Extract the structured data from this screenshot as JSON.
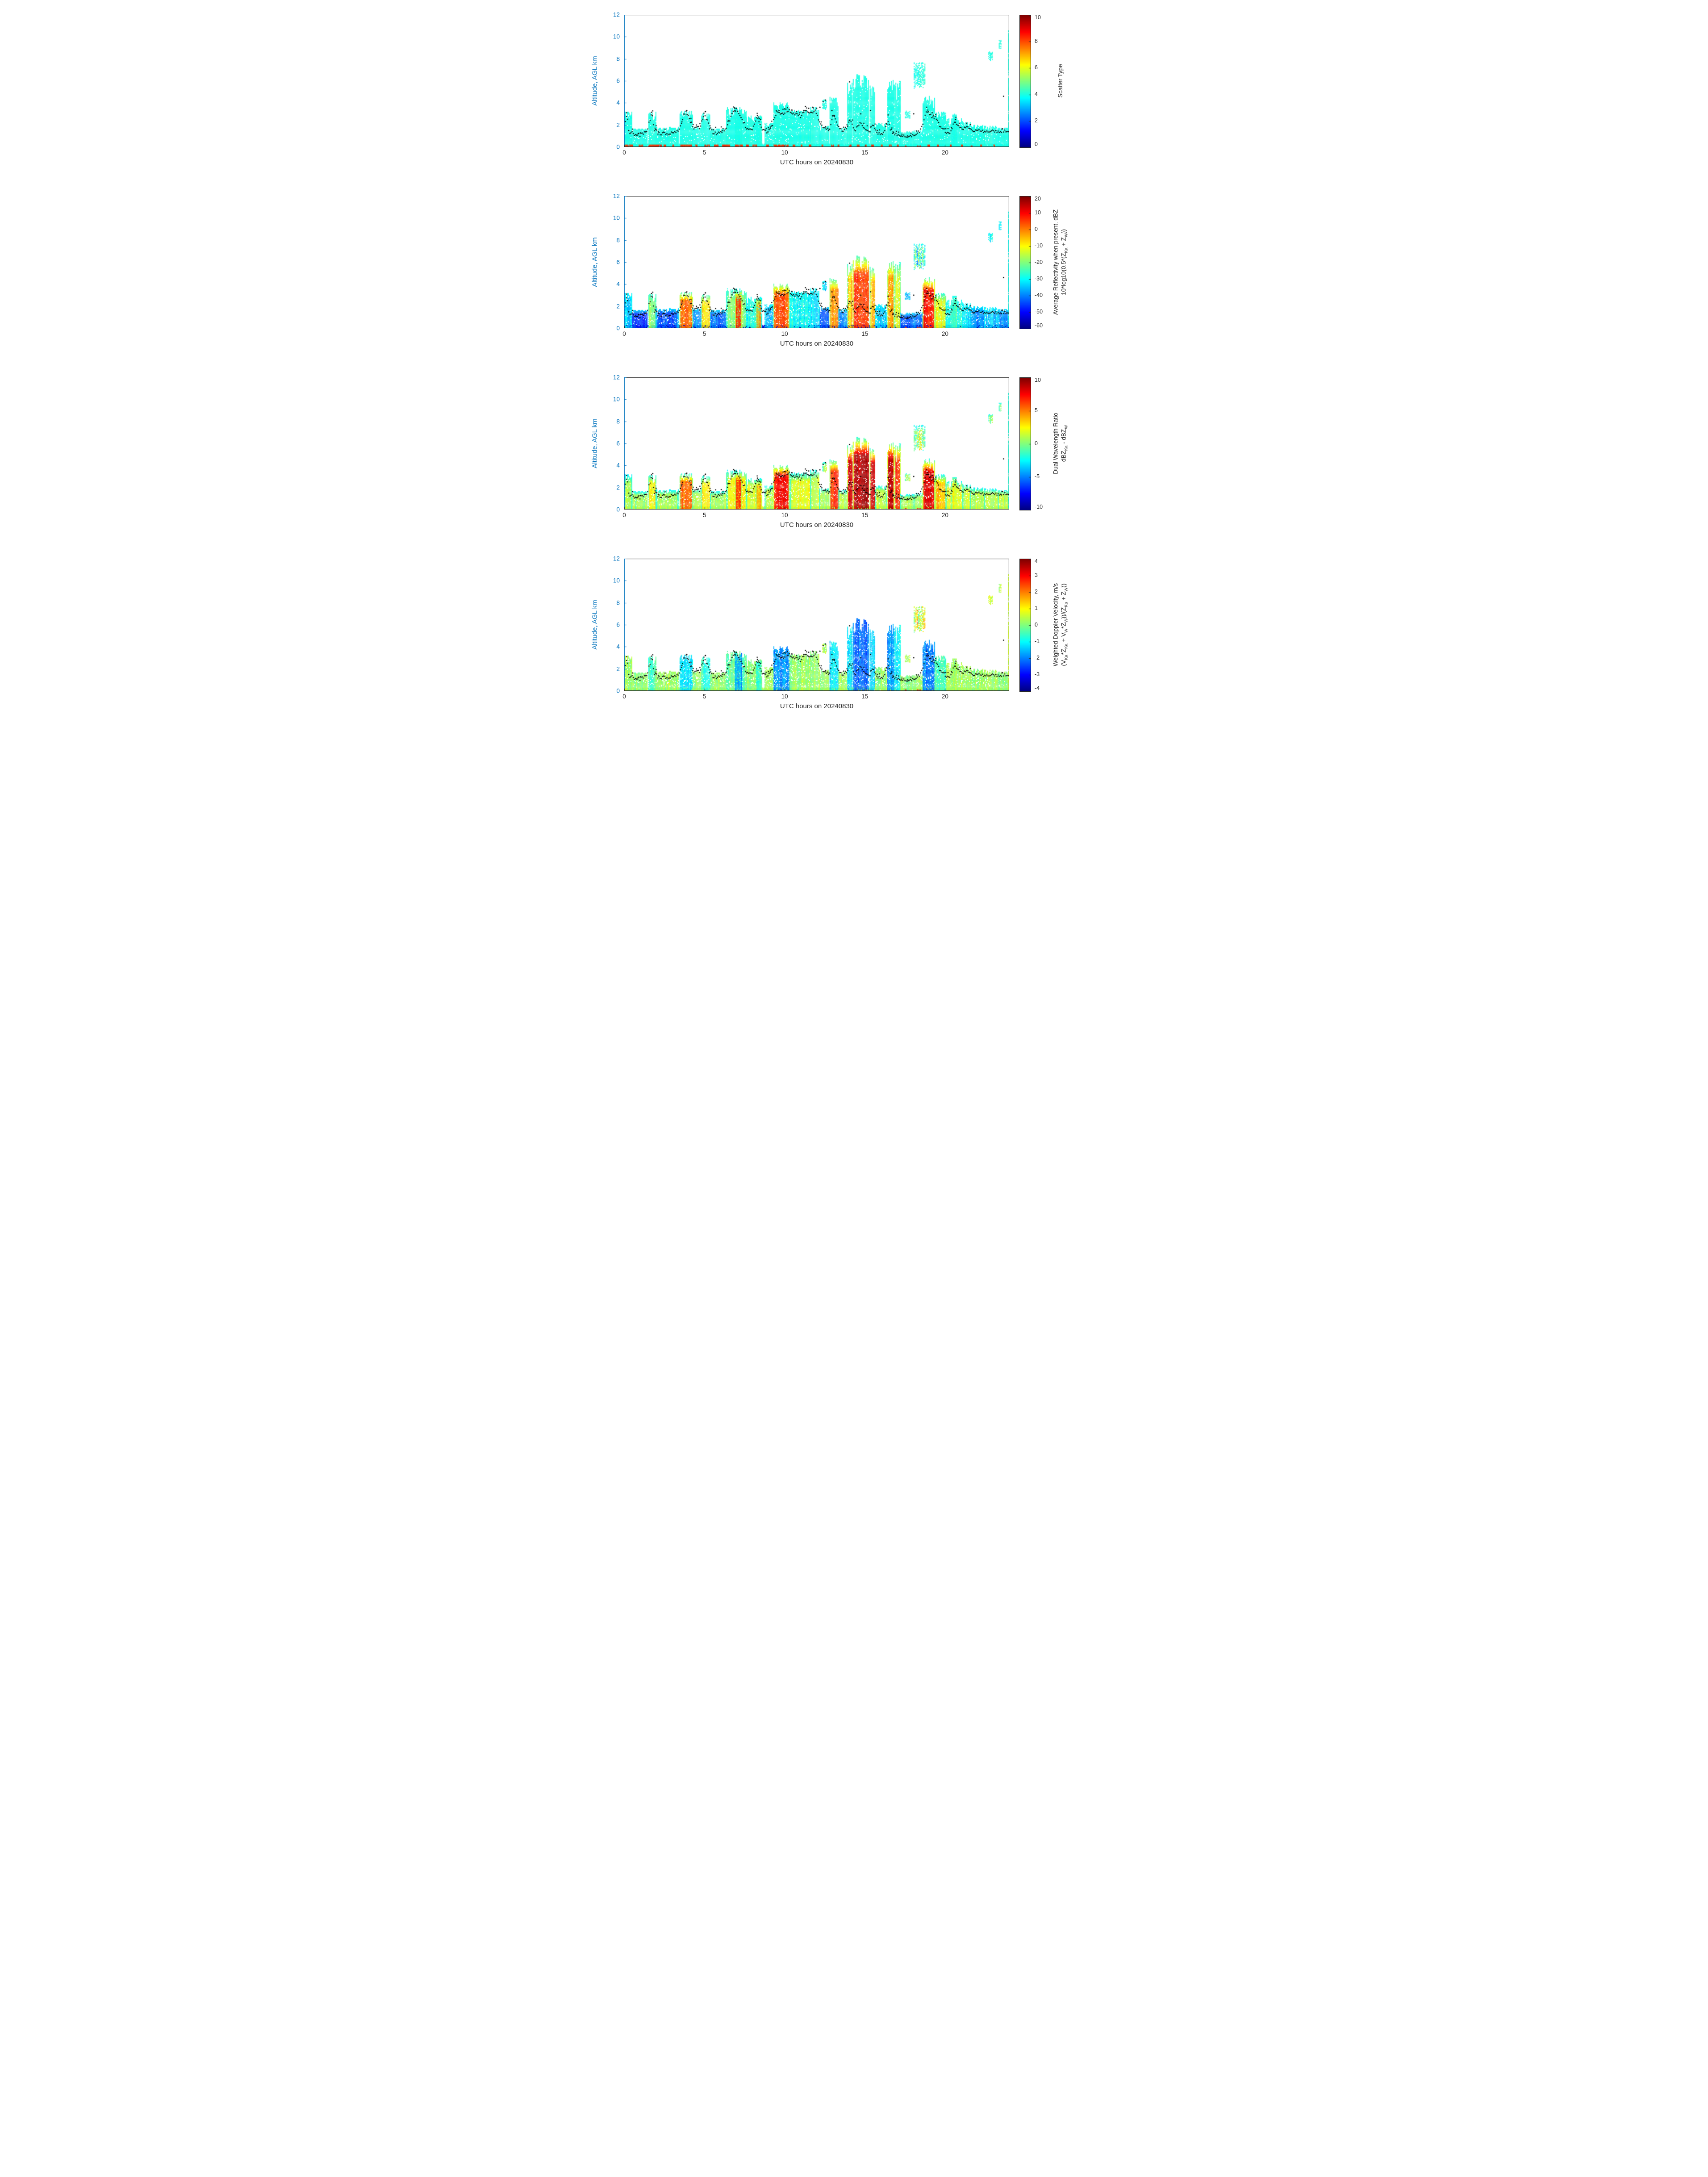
{
  "figure": {
    "background": "#ffffff",
    "y_axis_color": "#0072BD",
    "x_axis_color": "#262626",
    "dot_color": "#000000",
    "flag_color": "#ed3419",
    "colormap": "jet"
  },
  "chart_data": {
    "type": "heatmap",
    "x": {
      "label": "UTC hours on 20240830",
      "range": [
        0,
        24
      ],
      "ticks": [
        0,
        5,
        10,
        15,
        20
      ]
    },
    "y": {
      "label": "Altitude, AGL km",
      "range": [
        0,
        12
      ],
      "ticks": [
        0,
        2,
        4,
        6,
        8,
        10,
        12
      ]
    },
    "panels": [
      {
        "name": "scatter-type",
        "colorbar": {
          "min": 0,
          "max": 10,
          "ticks": [
            0,
            2,
            4,
            6,
            8,
            10
          ],
          "label_lines": [
            [
              {
                "t": "Scatter Type"
              }
            ]
          ]
        }
      },
      {
        "name": "average-reflectivity",
        "colorbar": {
          "min": -60,
          "max": 20,
          "ticks": [
            20,
            10,
            0,
            -10,
            -20,
            -30,
            -40,
            -50,
            -60
          ],
          "label_lines": [
            [
              {
                "t": "Average Reflectivity when present, dBZ"
              }
            ],
            [
              {
                "t": "10*log10(0.5*(Z"
              },
              {
                "s": "Ka"
              },
              {
                "t": " + Z"
              },
              {
                "s": "W"
              },
              {
                "t": "))"
              }
            ]
          ]
        }
      },
      {
        "name": "dual-wavelength-ratio",
        "colorbar": {
          "min": -10,
          "max": 10,
          "ticks": [
            10,
            5,
            0,
            -5,
            -10
          ],
          "label_lines": [
            [
              {
                "t": "Dual Wavelength Ratio"
              }
            ],
            [
              {
                "t": "dBZ"
              },
              {
                "s": "Ka"
              },
              {
                "t": " - dBZ"
              },
              {
                "s": "W"
              }
            ]
          ]
        }
      },
      {
        "name": "weighted-doppler-velocity",
        "colorbar": {
          "min": -4,
          "max": 4,
          "ticks": [
            4,
            3,
            2,
            1,
            0,
            -1,
            -2,
            -3,
            -4
          ],
          "label_lines": [
            [
              {
                "t": "Weighted Doppler Velocity, m/s"
              }
            ],
            [
              {
                "t": "(V"
              },
              {
                "s": "Ka"
              },
              {
                "t": "*Z"
              },
              {
                "s": "Ka"
              },
              {
                "t": " + V"
              },
              {
                "s": "W"
              },
              {
                "t": "*Z"
              },
              {
                "s": "W"
              },
              {
                "t": "))/(Z"
              },
              {
                "s": "Ka"
              },
              {
                "t": " + Z"
              },
              {
                "s": "W"
              },
              {
                "t": "))"
              }
            ]
          ]
        }
      }
    ],
    "cloud_features_format": [
      "t_start_h",
      "t_end_h",
      "base_km",
      "top_km",
      "scatter_type",
      "reflectivity_dBZ",
      "dwr_dB",
      "doppler_ms",
      "optional_noise_mult"
    ],
    "cloud_features": [
      [
        0.0,
        0.45,
        0,
        3.2,
        4,
        -34,
        1.0,
        0.2
      ],
      [
        0.45,
        1.45,
        0,
        1.7,
        4,
        -46,
        0.6,
        0.1
      ],
      [
        1.5,
        1.95,
        0,
        3.2,
        4,
        -18,
        2.5,
        -0.4
      ],
      [
        1.95,
        3.35,
        0,
        1.8,
        4,
        -44,
        0.8,
        0.2
      ],
      [
        3.45,
        4.25,
        0,
        3.3,
        4,
        2,
        5.5,
        -1.2
      ],
      [
        4.25,
        4.8,
        0,
        1.9,
        4,
        -38,
        1.2,
        0.2
      ],
      [
        4.8,
        5.35,
        0,
        3.1,
        4,
        -8,
        3.0,
        -0.6
      ],
      [
        5.35,
        6.35,
        0,
        1.7,
        4,
        -42,
        0.8,
        0.2
      ],
      [
        6.35,
        7.6,
        0,
        3.6,
        4,
        -20,
        2.5,
        -0.3
      ],
      [
        6.9,
        7.3,
        0,
        3.5,
        4,
        6,
        6.5,
        -1.8
      ],
      [
        7.6,
        8.6,
        0,
        2.9,
        4,
        -28,
        1.8,
        0.1
      ],
      [
        8.2,
        8.5,
        0,
        2.8,
        4,
        -4,
        4.0,
        -0.8
      ],
      [
        8.75,
        9.3,
        0,
        2.2,
        4,
        -34,
        1.0,
        0.2
      ],
      [
        9.3,
        10.25,
        0,
        4.1,
        4,
        3,
        7.5,
        -1.8
      ],
      [
        10.3,
        11.6,
        0,
        3.4,
        4,
        -30,
        2.0,
        0.2
      ],
      [
        11.6,
        12.15,
        0,
        3.7,
        4,
        -32,
        1.5,
        0.2
      ],
      [
        12.15,
        12.75,
        0,
        2.0,
        4,
        -42,
        0.8,
        0.1
      ],
      [
        12.35,
        12.6,
        3.4,
        4.3,
        4,
        -34,
        0.8,
        0.3
      ],
      [
        12.8,
        13.35,
        0,
        4.6,
        4,
        -2,
        6.5,
        -1.2
      ],
      [
        13.35,
        13.9,
        0,
        1.8,
        4,
        -38,
        1.0,
        0.2
      ],
      [
        13.9,
        14.2,
        0,
        5.9,
        4,
        -6,
        8.5,
        -1.2
      ],
      [
        14.25,
        15.25,
        0,
        6.6,
        4,
        6,
        9.0,
        -2.2
      ],
      [
        15.3,
        15.6,
        0,
        5.6,
        4,
        -6,
        8.0,
        -1.4
      ],
      [
        15.65,
        16.35,
        0,
        2.2,
        4,
        -34,
        1.4,
        0.2
      ],
      [
        16.4,
        16.8,
        0,
        6.2,
        4,
        -2,
        8.5,
        -1.8
      ],
      [
        16.85,
        17.2,
        0,
        6.0,
        4,
        -12,
        7.0,
        -1.0
      ],
      [
        17.2,
        18.05,
        0,
        1.4,
        4,
        -44,
        0.8,
        0.1
      ],
      [
        17.5,
        17.8,
        2.6,
        3.3,
        4,
        -36,
        1.0,
        0.3
      ],
      [
        18.05,
        18.75,
        5.3,
        7.7,
        4,
        -26,
        0.5,
        0.8,
        3
      ],
      [
        18.05,
        18.6,
        0,
        1.5,
        4,
        -42,
        1.0,
        0.2
      ],
      [
        18.6,
        19.35,
        0,
        4.6,
        4,
        9,
        8.0,
        -2.0
      ],
      [
        19.35,
        20.05,
        0,
        3.2,
        4,
        -12,
        3.5,
        -0.5
      ],
      [
        20.05,
        21.1,
        0,
        2.6,
        4,
        -28,
        2.0,
        0.3
      ],
      [
        20.4,
        20.7,
        0,
        3.1,
        4,
        -24,
        2.2,
        0.2
      ],
      [
        21.1,
        21.55,
        0,
        2.3,
        4,
        -32,
        1.6,
        0.2
      ],
      [
        21.55,
        22.45,
        0,
        2.0,
        4,
        -38,
        1.0,
        0.1
      ],
      [
        22.45,
        23.3,
        0,
        1.9,
        4,
        -34,
        1.2,
        0.2
      ],
      [
        23.3,
        23.95,
        0,
        1.8,
        4,
        -38,
        1.0,
        0.1
      ],
      [
        22.7,
        22.95,
        7.8,
        8.65,
        4,
        -30,
        0.4,
        0.6
      ],
      [
        23.35,
        23.5,
        8.9,
        9.7,
        4,
        -32,
        0.3,
        0.5
      ],
      [
        23.94,
        24.0,
        0,
        12.0,
        4,
        -30,
        0.5,
        0.4
      ]
    ],
    "surface_layer": {
      "t": [
        0,
        24
      ],
      "z": [
        0,
        0.3
      ],
      "values": [
        4,
        -55,
        0.8,
        0.4
      ]
    },
    "surface_scatter_orange": {
      "value": 8.3,
      "z": [
        0,
        0.22
      ],
      "intervals": [
        [
          0.05,
          0.5
        ],
        [
          0.9,
          1.15
        ],
        [
          1.5,
          2.3
        ],
        [
          2.45,
          2.6
        ],
        [
          3.0,
          3.1
        ],
        [
          3.5,
          4.2
        ],
        [
          4.4,
          4.55
        ],
        [
          5.0,
          5.3
        ],
        [
          5.6,
          5.85
        ],
        [
          6.1,
          6.6
        ],
        [
          6.9,
          7.4
        ],
        [
          7.6,
          7.75
        ],
        [
          8.0,
          8.25
        ],
        [
          8.85,
          9.0
        ],
        [
          9.3,
          10.2
        ],
        [
          10.5,
          10.65
        ],
        [
          11.0,
          11.1
        ],
        [
          11.5,
          11.65
        ],
        [
          12.3,
          12.4
        ],
        [
          12.9,
          13.05
        ],
        [
          13.3,
          13.4
        ],
        [
          14.0,
          14.15
        ],
        [
          14.5,
          14.65
        ],
        [
          15.0,
          15.1
        ],
        [
          15.4,
          15.55
        ],
        [
          16.0,
          16.1
        ],
        [
          16.5,
          16.65
        ],
        [
          17.0,
          17.1
        ],
        [
          18.9,
          19.05
        ],
        [
          19.5,
          19.6
        ],
        [
          20.3,
          20.4
        ],
        [
          21.0,
          21.1
        ],
        [
          21.6,
          21.7
        ],
        [
          22.2,
          22.3
        ],
        [
          23.0,
          23.1
        ]
      ]
    },
    "dot_track_keypoints": [
      [
        0.0,
        1.6
      ],
      [
        0.15,
        3.0
      ],
      [
        0.3,
        1.4
      ],
      [
        0.6,
        1.2
      ],
      [
        1.0,
        1.1
      ],
      [
        1.4,
        1.3
      ],
      [
        1.7,
        3.1
      ],
      [
        1.9,
        1.5
      ],
      [
        2.2,
        1.2
      ],
      [
        2.6,
        1.2
      ],
      [
        3.0,
        1.3
      ],
      [
        3.4,
        1.6
      ],
      [
        3.8,
        3.2
      ],
      [
        4.0,
        2.9
      ],
      [
        4.3,
        1.7
      ],
      [
        4.7,
        1.7
      ],
      [
        5.0,
        3.1
      ],
      [
        5.3,
        1.8
      ],
      [
        5.6,
        1.2
      ],
      [
        6.0,
        1.3
      ],
      [
        6.4,
        1.8
      ],
      [
        6.8,
        3.3
      ],
      [
        7.0,
        3.4
      ],
      [
        7.3,
        2.5
      ],
      [
        7.7,
        1.6
      ],
      [
        8.0,
        1.6
      ],
      [
        8.3,
        2.8
      ],
      [
        8.6,
        1.5
      ],
      [
        8.9,
        1.4
      ],
      [
        9.2,
        1.9
      ],
      [
        9.5,
        3.1
      ],
      [
        9.8,
        2.9
      ],
      [
        10.1,
        3.3
      ],
      [
        10.4,
        3.2
      ],
      [
        10.7,
        3.0
      ],
      [
        11.0,
        2.8
      ],
      [
        11.3,
        3.2
      ],
      [
        11.6,
        3.0
      ],
      [
        11.9,
        3.2
      ],
      [
        12.2,
        2.2
      ],
      [
        12.5,
        1.7
      ],
      [
        12.8,
        1.5
      ],
      [
        13.05,
        2.9
      ],
      [
        13.3,
        2.0
      ],
      [
        13.6,
        1.4
      ],
      [
        13.9,
        1.8
      ],
      [
        14.1,
        2.4
      ],
      [
        14.4,
        1.5
      ],
      [
        14.7,
        2.2
      ],
      [
        15.0,
        1.7
      ],
      [
        15.3,
        1.4
      ],
      [
        15.5,
        2.2
      ],
      [
        15.8,
        1.2
      ],
      [
        16.1,
        1.2
      ],
      [
        16.45,
        2.2
      ],
      [
        16.7,
        1.3
      ],
      [
        17.0,
        1.1
      ],
      [
        17.3,
        1.0
      ],
      [
        17.6,
        0.85
      ],
      [
        17.9,
        0.95
      ],
      [
        18.2,
        1.1
      ],
      [
        18.5,
        1.5
      ],
      [
        18.8,
        3.2
      ],
      [
        19.1,
        2.9
      ],
      [
        19.4,
        2.6
      ],
      [
        19.7,
        1.9
      ],
      [
        20.0,
        1.4
      ],
      [
        20.3,
        1.3
      ],
      [
        20.6,
        2.2
      ],
      [
        20.9,
        1.8
      ],
      [
        21.2,
        1.7
      ],
      [
        21.5,
        1.8
      ],
      [
        21.8,
        1.4
      ],
      [
        22.1,
        1.5
      ],
      [
        22.4,
        1.4
      ],
      [
        22.7,
        1.5
      ],
      [
        23.0,
        1.4
      ],
      [
        23.3,
        1.3
      ],
      [
        23.6,
        1.5
      ],
      [
        23.9,
        1.5
      ]
    ],
    "extra_dots": [
      [
        14.05,
        5.9
      ],
      [
        23.65,
        4.6
      ],
      [
        12.4,
        4.1
      ],
      [
        11.75,
        3.6
      ],
      [
        12.95,
        3.3
      ],
      [
        10.0,
        3.45
      ],
      [
        6.9,
        3.5
      ],
      [
        14.75,
        3.0
      ],
      [
        15.35,
        3.3
      ],
      [
        16.45,
        2.9
      ],
      [
        3.9,
        3.3
      ],
      [
        5.05,
        3.2
      ],
      [
        0.15,
        3.1
      ],
      [
        1.7,
        3.15
      ],
      [
        8.3,
        2.85
      ],
      [
        18.05,
        3.0
      ],
      [
        19.2,
        3.1
      ],
      [
        9.65,
        3.3
      ],
      [
        10.45,
        3.35
      ],
      [
        11.2,
        3.3
      ],
      [
        13.1,
        2.85
      ],
      [
        20.65,
        2.5
      ],
      [
        21.35,
        2.15
      ],
      [
        12.55,
        4.25
      ],
      [
        11.5,
        3.5
      ],
      [
        12.2,
        3.6
      ]
    ],
    "flagged_times": [
      17.55,
      18.3,
      18.45
    ]
  }
}
